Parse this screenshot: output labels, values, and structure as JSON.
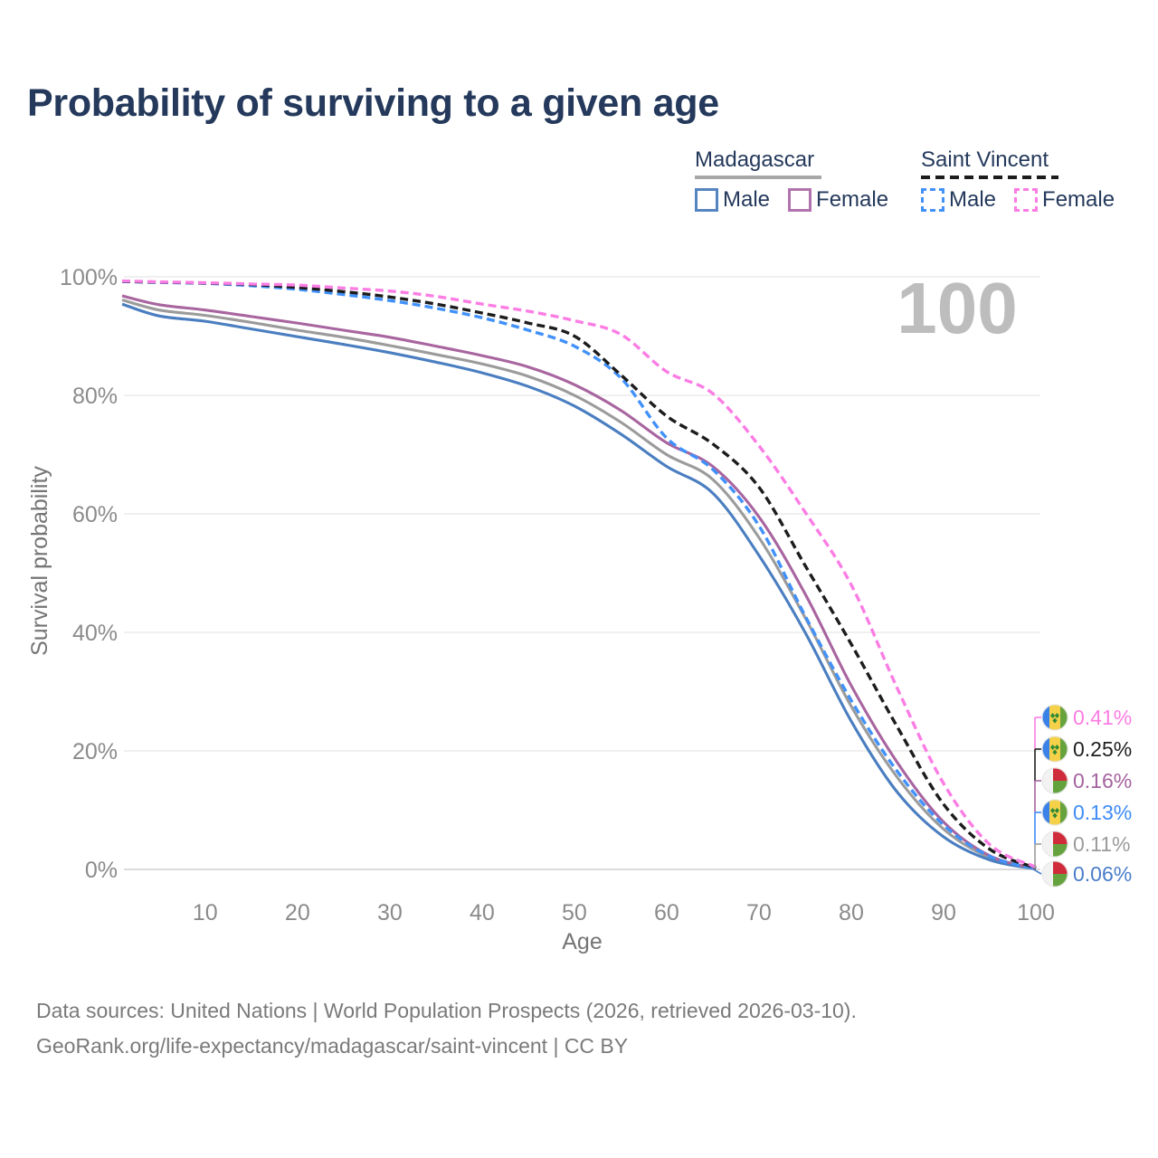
{
  "title": "Probability of surviving to a given age",
  "hover_age_indicator": "100",
  "legend": {
    "groups": [
      {
        "name": "Madagascar",
        "line_style": "solid",
        "line_color": "#a7a7a7",
        "items": [
          {
            "label": "Male",
            "swatch_color": "#5585c0",
            "swatch_style": "solid"
          },
          {
            "label": "Female",
            "swatch_color": "#b173ae",
            "swatch_style": "solid"
          }
        ]
      },
      {
        "name": "Saint Vincent",
        "line_style": "dashed",
        "line_color": "#1c1c1c",
        "items": [
          {
            "label": "Male",
            "swatch_color": "#4191fa",
            "swatch_style": "dashed"
          },
          {
            "label": "Female",
            "swatch_color": "#fb7de4",
            "swatch_style": "dashed"
          }
        ]
      }
    ]
  },
  "chart_data": {
    "type": "line",
    "title": "Probability of surviving to a given age",
    "xlabel": "Age",
    "ylabel": "Survival probability",
    "xlim": [
      1,
      100
    ],
    "ylim": [
      0,
      100
    ],
    "grid": "horizontal",
    "legend_position": "top-right",
    "x_ticks": [
      10,
      20,
      30,
      40,
      50,
      60,
      70,
      80,
      90,
      100
    ],
    "y_ticks": [
      {
        "value": 100,
        "label": "100%"
      },
      {
        "value": 80,
        "label": "80%"
      },
      {
        "value": 60,
        "label": "60%"
      },
      {
        "value": 40,
        "label": "40%"
      },
      {
        "value": 20,
        "label": "20%"
      },
      {
        "value": 0,
        "label": "0%"
      }
    ],
    "ages": [
      1,
      5,
      10,
      15,
      20,
      25,
      30,
      35,
      40,
      45,
      50,
      55,
      60,
      65,
      70,
      75,
      80,
      85,
      90,
      95,
      100
    ],
    "series": [
      {
        "id": "madagascar_total",
        "name": "Madagascar",
        "country": "Madagascar",
        "sex": "Both",
        "color": "#9b9b9b",
        "style": "solid",
        "end_value": "0.11%",
        "values": [
          96.1,
          94.4,
          93.5,
          92.3,
          91.0,
          89.8,
          88.4,
          86.9,
          85.3,
          83.2,
          80.0,
          75.5,
          70.0,
          65.8,
          56.0,
          42.5,
          27.5,
          15.5,
          6.8,
          2.0,
          0.11
        ]
      },
      {
        "id": "madagascar_male",
        "name": "Madagascar Male",
        "country": "Madagascar",
        "sex": "Male",
        "color": "#4a7ec0",
        "style": "solid",
        "end_value": "0.06%",
        "values": [
          95.4,
          93.4,
          92.5,
          91.2,
          89.9,
          88.6,
          87.2,
          85.6,
          83.8,
          81.5,
          78.2,
          73.5,
          68.0,
          63.5,
          53.0,
          40.0,
          25.0,
          13.0,
          5.5,
          1.6,
          0.06
        ]
      },
      {
        "id": "madagascar_female",
        "name": "Madagascar Female",
        "country": "Madagascar",
        "sex": "Female",
        "color": "#a8659f",
        "style": "solid",
        "end_value": "0.16%",
        "values": [
          96.8,
          95.3,
          94.4,
          93.3,
          92.2,
          91.0,
          89.8,
          88.3,
          86.7,
          84.8,
          81.8,
          77.5,
          72.0,
          68.0,
          59.5,
          46.5,
          31.0,
          18.0,
          8.0,
          2.3,
          0.16
        ]
      },
      {
        "id": "saint_vincent_male",
        "name": "Saint Vincent Male",
        "country": "Saint Vincent",
        "sex": "Male",
        "color": "#4191fa",
        "style": "dashed",
        "end_value": "0.13%",
        "values": [
          99.2,
          99.05,
          98.9,
          98.5,
          97.9,
          97.0,
          96.0,
          94.7,
          93.1,
          91.0,
          88.3,
          83.0,
          72.8,
          67.5,
          58.0,
          42.8,
          28.5,
          16.5,
          7.5,
          2.2,
          0.13
        ]
      },
      {
        "id": "saint_vincent_total",
        "name": "Saint Vincent",
        "country": "Saint Vincent",
        "sex": "Both",
        "color": "#1c1c1c",
        "style": "dashed",
        "end_value": "0.25%",
        "values": [
          99.25,
          99.1,
          98.95,
          98.7,
          98.2,
          97.5,
          96.6,
          95.4,
          93.9,
          92.2,
          90.0,
          83.5,
          76.5,
          71.8,
          64.5,
          51.3,
          38.0,
          24.0,
          11.0,
          3.4,
          0.25
        ]
      },
      {
        "id": "saint_vincent_female",
        "name": "Saint Vincent Female",
        "country": "Saint Vincent",
        "sex": "Female",
        "color": "#fb7de4",
        "style": "dashed",
        "end_value": "0.41%",
        "values": [
          99.3,
          99.15,
          99.0,
          98.8,
          98.6,
          98.1,
          97.6,
          96.7,
          95.4,
          94.2,
          92.6,
          90.3,
          84.0,
          80.3,
          71.5,
          60.3,
          48.0,
          30.5,
          14.5,
          4.2,
          0.41
        ]
      }
    ]
  },
  "end_labels": [
    {
      "label": "0.41%",
      "color": "#fc7de2",
      "flag": "saint-vincent",
      "series": "Saint Vincent Female"
    },
    {
      "label": "0.25%",
      "color": "#1f1f1f",
      "flag": "saint-vincent",
      "series": "Saint Vincent"
    },
    {
      "label": "0.16%",
      "color": "#a4639e",
      "flag": "madagascar",
      "series": "Madagascar Female"
    },
    {
      "label": "0.13%",
      "color": "#3e8bf7",
      "flag": "saint-vincent",
      "series": "Saint Vincent Male"
    },
    {
      "label": "0.11%",
      "color": "#9b9b9b",
      "flag": "madagascar",
      "series": "Madagascar"
    },
    {
      "label": "0.06%",
      "color": "#4a7dca",
      "flag": "madagascar",
      "series": "Madagascar Male"
    }
  ],
  "footer": {
    "line1": "Data sources: United Nations | World Population Prospects (2026, retrieved 2026-03-10).",
    "line2": "GeoRank.org/life-expectancy/madagascar/saint-vincent | CC BY"
  }
}
